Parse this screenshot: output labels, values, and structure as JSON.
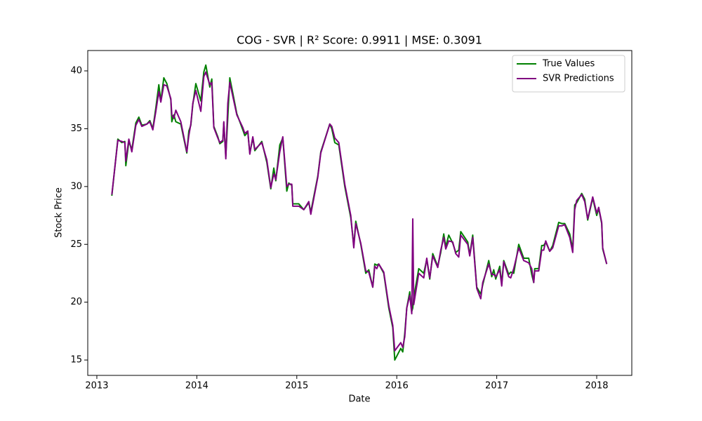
{
  "chart_data": {
    "type": "line",
    "title": "COG - SVR | R² Score: 0.9911 | MSE: 0.3091",
    "x_label": "Date",
    "y_label": "Stock Price",
    "x": [
      2013.15,
      2013.21,
      2013.25,
      2013.28,
      2013.29,
      2013.32,
      2013.35,
      2013.39,
      2013.42,
      2013.45,
      2013.5,
      2013.53,
      2013.56,
      2013.59,
      2013.62,
      2013.64,
      2013.67,
      2013.7,
      2013.74,
      2013.75,
      2013.77,
      2013.79,
      2013.84,
      2013.9,
      2013.92,
      2013.94,
      2013.96,
      2013.99,
      2014.04,
      2014.07,
      2014.09,
      2014.13,
      2014.15,
      2014.17,
      2014.21,
      2014.23,
      2014.26,
      2014.27,
      2014.29,
      2014.31,
      2014.33,
      2014.4,
      2014.46,
      2014.48,
      2014.51,
      2014.53,
      2014.56,
      2014.58,
      2014.65,
      2014.7,
      2014.74,
      2014.77,
      2014.79,
      2014.83,
      2014.86,
      2014.9,
      2014.92,
      2014.95,
      2014.96,
      2015.02,
      2015.07,
      2015.12,
      2015.14,
      2015.21,
      2015.24,
      2015.33,
      2015.35,
      2015.38,
      2015.42,
      2015.48,
      2015.54,
      2015.57,
      2015.59,
      2015.64,
      2015.69,
      2015.72,
      2015.76,
      2015.78,
      2015.8,
      2015.82,
      2015.87,
      2015.92,
      2015.96,
      2015.98,
      2016.04,
      2016.06,
      2016.08,
      2016.1,
      2016.13,
      2016.15,
      2016.16,
      2016.17,
      2016.22,
      2016.27,
      2016.3,
      2016.33,
      2016.36,
      2016.41,
      2016.44,
      2016.47,
      2016.49,
      2016.52,
      2016.56,
      2016.59,
      2016.62,
      2016.64,
      2016.71,
      2016.73,
      2016.76,
      2016.8,
      2016.84,
      2016.86,
      2016.92,
      2016.95,
      2016.97,
      2016.99,
      2017.03,
      2017.05,
      2017.07,
      2017.12,
      2017.14,
      2017.17,
      2017.22,
      2017.27,
      2017.32,
      2017.35,
      2017.37,
      2017.38,
      2017.42,
      2017.45,
      2017.47,
      2017.49,
      2017.53,
      2017.56,
      2017.62,
      2017.65,
      2017.68,
      2017.73,
      2017.76,
      2017.78,
      2017.8,
      2017.85,
      2017.88,
      2017.91,
      2017.96,
      2018.0,
      2018.02,
      2018.05,
      2018.06,
      2018.1
    ],
    "series": [
      {
        "name": "True Values",
        "color": "#008000",
        "values": [
          29.2,
          34.1,
          33.8,
          33.9,
          31.8,
          33.9,
          33.2,
          35.5,
          36.0,
          35.3,
          35.4,
          35.7,
          35.0,
          36.8,
          38.8,
          37.4,
          39.4,
          38.9,
          37.5,
          35.6,
          36.2,
          35.6,
          35.4,
          32.9,
          34.8,
          35.3,
          37.1,
          38.9,
          37.4,
          39.9,
          40.5,
          38.6,
          39.3,
          35.2,
          34.3,
          33.7,
          33.9,
          35.5,
          32.6,
          36.0,
          39.4,
          36.3,
          34.9,
          34.4,
          34.7,
          32.9,
          34.2,
          33.1,
          33.9,
          32.1,
          29.8,
          31.6,
          30.5,
          33.6,
          34.2,
          29.6,
          30.3,
          30.1,
          28.5,
          28.5,
          28.0,
          28.6,
          27.8,
          30.9,
          33.0,
          35.4,
          35.0,
          33.8,
          33.6,
          30.0,
          27.3,
          24.9,
          27.0,
          25.0,
          22.5,
          22.8,
          21.3,
          23.3,
          23.2,
          23.3,
          22.5,
          19.5,
          17.8,
          15.0,
          16.0,
          15.7,
          17.3,
          19.5,
          20.9,
          19.2,
          19.5,
          20.4,
          22.9,
          22.5,
          23.7,
          22.0,
          24.2,
          23.1,
          24.3,
          25.9,
          24.8,
          25.8,
          25.1,
          24.3,
          24.5,
          26.1,
          25.2,
          24.1,
          25.8,
          21.3,
          20.7,
          21.5,
          23.6,
          22.2,
          22.8,
          22.0,
          23.1,
          21.6,
          23.6,
          22.4,
          22.6,
          22.5,
          25.0,
          23.8,
          23.8,
          22.4,
          21.7,
          22.9,
          22.9,
          24.9,
          24.9,
          25.2,
          24.4,
          24.9,
          26.9,
          26.8,
          26.8,
          25.9,
          24.6,
          28.4,
          28.6,
          29.4,
          28.9,
          27.1,
          29.0,
          27.5,
          28.1,
          26.8,
          24.6,
          23.3
        ]
      },
      {
        "name": "SVR Predictions",
        "color": "#800080",
        "values": [
          29.3,
          34.0,
          33.9,
          33.8,
          32.2,
          34.1,
          33.0,
          35.3,
          35.8,
          35.2,
          35.4,
          35.6,
          34.9,
          36.5,
          38.2,
          37.3,
          38.8,
          38.7,
          37.6,
          36.2,
          35.9,
          36.6,
          35.6,
          33.0,
          34.4,
          35.4,
          37.2,
          38.3,
          36.5,
          39.5,
          39.9,
          38.8,
          39.0,
          35.1,
          34.2,
          33.8,
          34.0,
          35.6,
          32.4,
          37.2,
          39.0,
          36.2,
          35.1,
          34.6,
          34.8,
          32.8,
          34.3,
          33.2,
          33.8,
          32.3,
          29.9,
          31.1,
          30.6,
          33.0,
          34.3,
          30.0,
          30.2,
          30.2,
          28.3,
          28.3,
          28.0,
          28.7,
          27.6,
          30.8,
          32.9,
          35.4,
          35.2,
          34.2,
          33.8,
          30.2,
          27.5,
          24.7,
          26.8,
          25.1,
          22.7,
          22.6,
          21.3,
          23.1,
          22.9,
          23.3,
          22.6,
          19.7,
          18.0,
          15.8,
          16.5,
          16.1,
          17.0,
          19.5,
          20.6,
          19.0,
          27.2,
          19.8,
          22.5,
          22.1,
          23.8,
          22.1,
          24.0,
          23.0,
          24.5,
          25.6,
          24.6,
          25.3,
          25.2,
          24.2,
          23.9,
          25.8,
          25.0,
          24.0,
          25.6,
          21.2,
          20.3,
          21.7,
          23.3,
          22.4,
          22.4,
          22.2,
          22.8,
          21.4,
          23.5,
          22.2,
          22.1,
          22.9,
          24.7,
          23.6,
          23.4,
          22.9,
          21.7,
          22.7,
          22.7,
          24.5,
          24.5,
          25.3,
          24.4,
          24.7,
          26.6,
          26.6,
          26.7,
          25.6,
          24.3,
          28.0,
          28.8,
          29.3,
          28.7,
          27.2,
          29.1,
          27.7,
          28.2,
          26.9,
          24.7,
          23.3
        ]
      }
    ],
    "xlim": [
      2012.909,
      2018.351
    ],
    "xticks": [
      2013,
      2014,
      2015,
      2016,
      2017,
      2018
    ],
    "ylim": [
      13.67,
      41.76
    ],
    "yticks": [
      15,
      20,
      25,
      30,
      35,
      40
    ],
    "grid": false,
    "legend": "upper right"
  }
}
